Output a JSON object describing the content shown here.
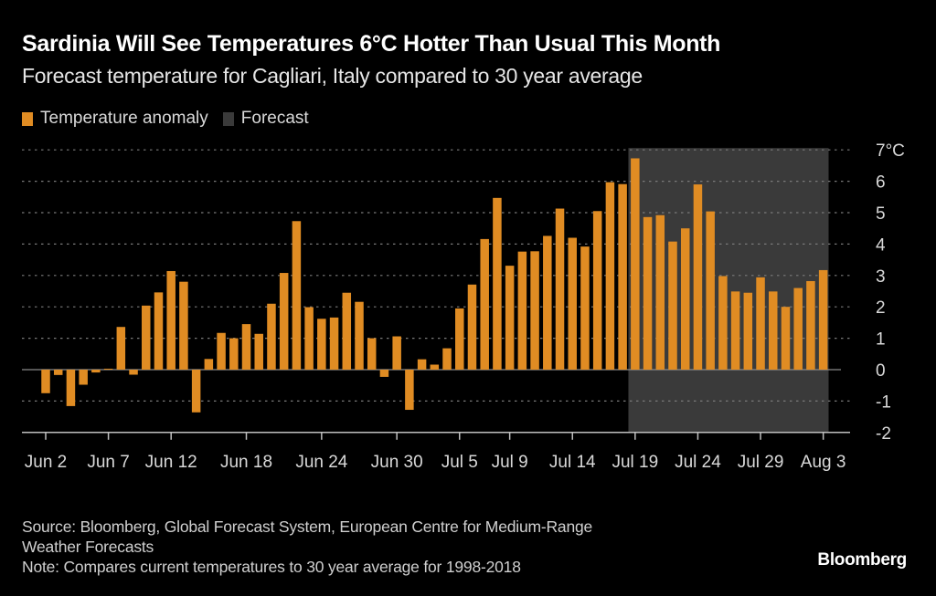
{
  "header": {
    "title": "Sardinia Will See Temperatures 6°C Hotter Than Usual This Month",
    "subtitle": "Forecast temperature for Cagliari, Italy compared to 30 year average"
  },
  "legend": [
    {
      "label": "Temperature anomaly",
      "color": "#e08c23"
    },
    {
      "label": "Forecast",
      "color": "#3a3a3a"
    }
  ],
  "footer": {
    "source_line1": "Source: Bloomberg, Global Forecast System, European Centre for Medium-Range",
    "source_line2": "Weather Forecasts",
    "note": "Note: Compares current temperatures to 30 year average for 1998-2018",
    "brand": "Bloomberg"
  },
  "colors": {
    "background": "#000000",
    "bar": "#e08c23",
    "forecast_band": "#3a3a3a",
    "gridline": "#7a7a7a",
    "axis": "#bfbfbf",
    "tick_text": "#d9d9d9"
  },
  "chart_data": {
    "type": "bar",
    "title": "Sardinia Will See Temperatures 6°C Hotter Than Usual This Month",
    "subtitle": "Forecast temperature for Cagliari, Italy compared to 30 year average",
    "xlabel": "",
    "ylabel": "",
    "y_unit": "°C",
    "ylim": [
      -2,
      7
    ],
    "yticks": [
      7,
      6,
      5,
      4,
      3,
      2,
      1,
      0,
      -1,
      -2
    ],
    "ytick_labels": [
      "7°C",
      "6",
      "5",
      "4",
      "3",
      "2",
      "1",
      "0",
      "-1",
      "-2"
    ],
    "y_axis_side": "right",
    "grid": true,
    "legend_position": "top-left",
    "start_date": "Jun 2",
    "x_tick_labels": [
      {
        "label": "Jun 2",
        "day_index": 0
      },
      {
        "label": "Jun 7",
        "day_index": 5
      },
      {
        "label": "Jun 12",
        "day_index": 10
      },
      {
        "label": "Jun 18",
        "day_index": 16
      },
      {
        "label": "Jun 24",
        "day_index": 22
      },
      {
        "label": "Jun 30",
        "day_index": 28
      },
      {
        "label": "Jul 5",
        "day_index": 33
      },
      {
        "label": "Jul 9",
        "day_index": 37
      },
      {
        "label": "Jul 14",
        "day_index": 42
      },
      {
        "label": "Jul 19",
        "day_index": 47
      },
      {
        "label": "Jul 24",
        "day_index": 52
      },
      {
        "label": "Jul 29",
        "day_index": 57
      },
      {
        "label": "Aug 3",
        "day_index": 62
      }
    ],
    "forecast_range": {
      "start_day_index": 47,
      "end_day_index": 62,
      "label": "Forecast"
    },
    "series": [
      {
        "name": "Temperature anomaly",
        "values": [
          -0.75,
          -0.17,
          -1.16,
          -0.48,
          -0.09,
          0.03,
          1.36,
          -0.16,
          2.04,
          2.46,
          3.14,
          2.8,
          -1.36,
          0.34,
          1.17,
          1.0,
          1.45,
          1.14,
          2.1,
          3.08,
          4.73,
          1.99,
          1.62,
          1.66,
          2.45,
          2.16,
          1.0,
          -0.23,
          1.06,
          -1.28,
          0.33,
          0.16,
          0.68,
          1.95,
          2.71,
          4.16,
          5.47,
          3.31,
          3.76,
          3.77,
          4.26,
          5.13,
          4.2,
          3.92,
          5.05,
          5.97,
          5.91,
          6.73,
          4.86,
          4.92,
          4.08,
          4.5,
          5.9,
          5.04,
          2.98,
          2.49,
          2.45,
          2.94,
          2.49,
          2.0,
          2.6,
          2.82,
          3.17
        ]
      }
    ]
  }
}
